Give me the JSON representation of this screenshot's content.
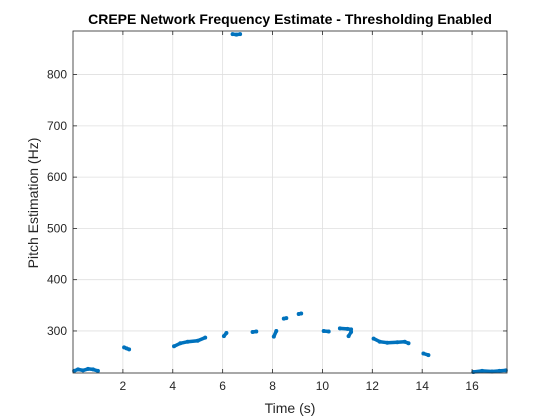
{
  "chart_data": {
    "type": "scatter",
    "title": "CREPE Network Frequency Estimate - Thresholding Enabled",
    "xlabel": "Time (s)",
    "ylabel": "Pitch Estimation (Hz)",
    "xlim": [
      0,
      17.4
    ],
    "ylim": [
      218,
      885
    ],
    "xticks": [
      "2",
      "4",
      "6",
      "8",
      "10",
      "12",
      "14",
      "16"
    ],
    "yticks": [
      "300",
      "400",
      "500",
      "600",
      "700",
      "800"
    ],
    "grid": true,
    "colors": {
      "series": "#0072BD",
      "grid": "#dfdfdf",
      "axis": "#262626"
    },
    "series": [
      {
        "segments": [
          [
            [
              0.05,
              222
            ],
            [
              0.2,
              225
            ],
            [
              0.4,
              223
            ],
            [
              0.6,
              226
            ],
            [
              0.8,
              225
            ],
            [
              1.0,
              222
            ]
          ],
          [
            [
              2.05,
              268
            ],
            [
              2.15,
              266
            ],
            [
              2.25,
              264
            ]
          ],
          [
            [
              4.05,
              270
            ],
            [
              4.3,
              276
            ],
            [
              4.6,
              279
            ],
            [
              5.0,
              281
            ],
            [
              5.3,
              287
            ]
          ],
          [
            [
              6.05,
              290
            ],
            [
              6.15,
              296
            ]
          ],
          [
            [
              6.4,
              879
            ],
            [
              6.55,
              878
            ],
            [
              6.7,
              879
            ]
          ],
          [
            [
              7.2,
              298
            ],
            [
              7.35,
              299
            ]
          ],
          [
            [
              8.05,
              289
            ],
            [
              8.15,
              300
            ]
          ],
          [
            [
              8.45,
              324
            ],
            [
              8.55,
              325
            ]
          ],
          [
            [
              9.05,
              333
            ],
            [
              9.15,
              334
            ]
          ],
          [
            [
              10.05,
              300
            ],
            [
              10.25,
              299
            ]
          ],
          [
            [
              10.7,
              305
            ],
            [
              11.0,
              304
            ],
            [
              11.15,
              303
            ]
          ],
          [
            [
              11.05,
              290
            ],
            [
              11.15,
              298
            ]
          ],
          [
            [
              12.05,
              285
            ],
            [
              12.3,
              279
            ],
            [
              12.6,
              277
            ],
            [
              13.0,
              278
            ],
            [
              13.3,
              279
            ],
            [
              13.45,
              276
            ]
          ],
          [
            [
              14.05,
              256
            ],
            [
              14.25,
              253
            ]
          ],
          [
            [
              16.05,
              220
            ],
            [
              16.4,
              222
            ],
            [
              16.8,
              221
            ],
            [
              17.1,
              222
            ],
            [
              17.35,
              223
            ]
          ]
        ]
      }
    ]
  }
}
